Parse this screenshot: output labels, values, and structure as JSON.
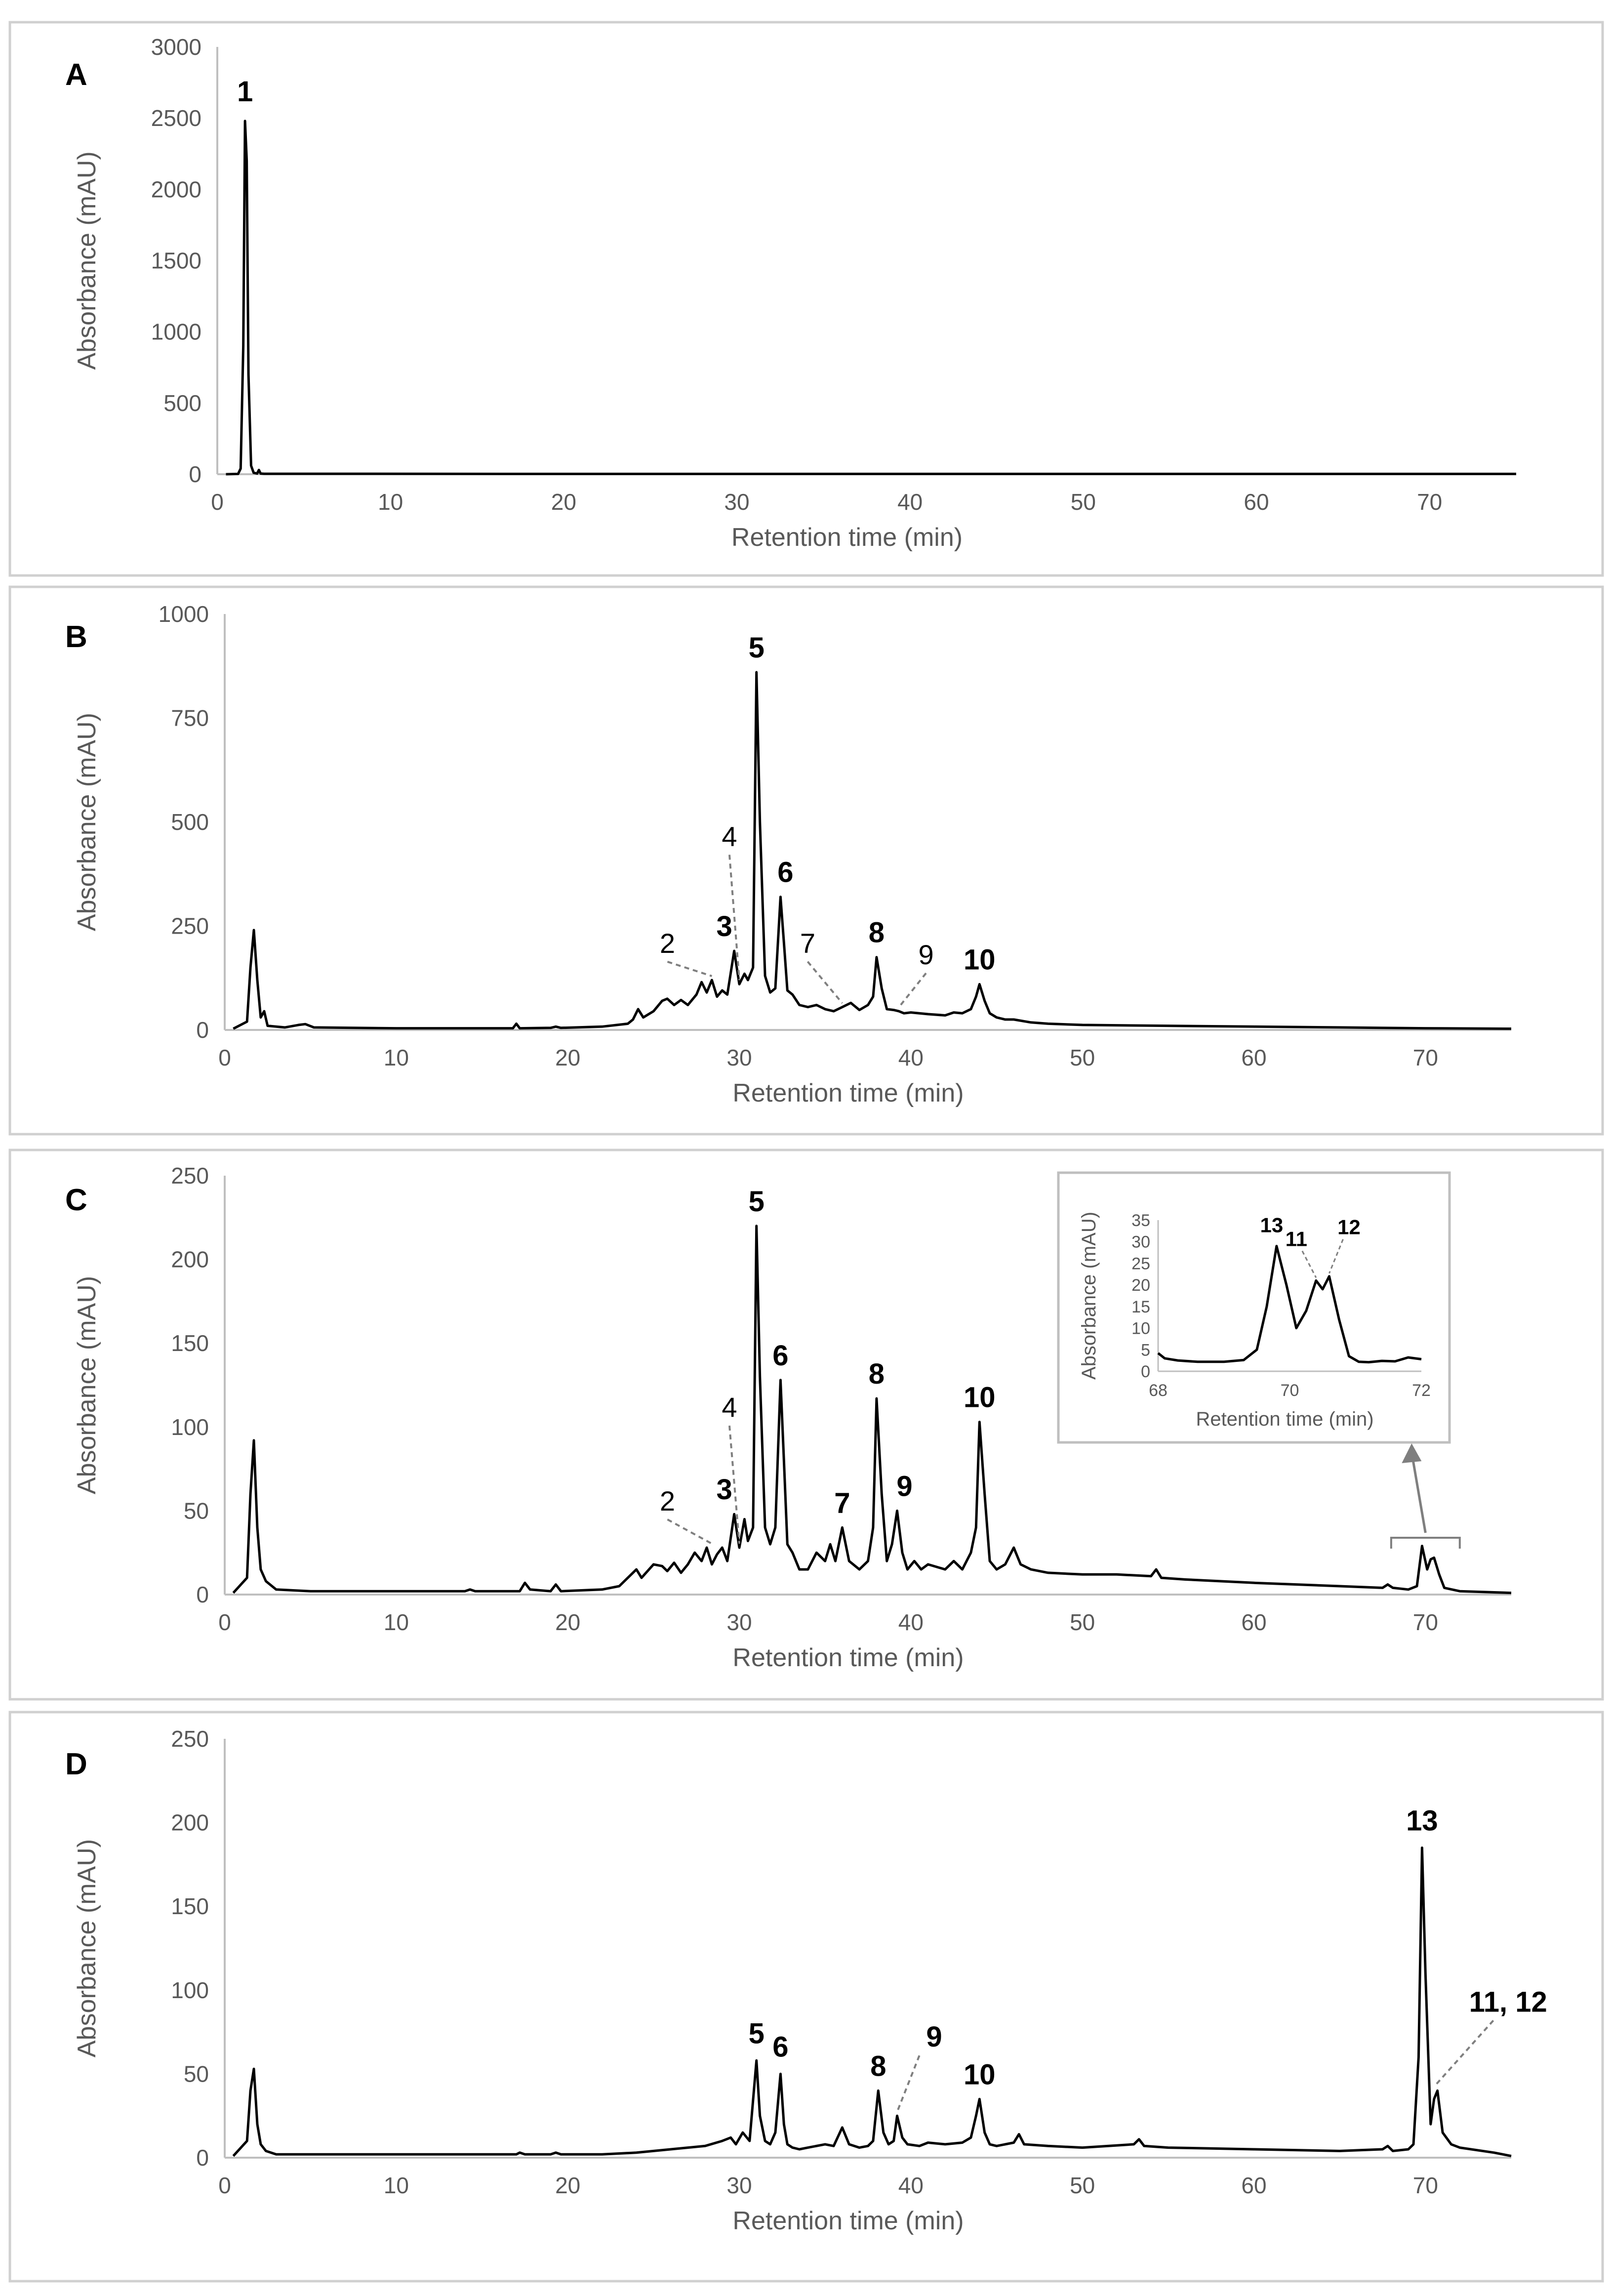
{
  "chart_data": [
    {
      "type": "line",
      "panel": "A",
      "xlabel": "Retention time (min)",
      "ylabel": "Absorbance (mAU)",
      "xlim": [
        0,
        75
      ],
      "ylim": [
        0,
        3000
      ],
      "xticks": [
        0,
        10,
        20,
        30,
        40,
        50,
        60,
        70
      ],
      "yticks": [
        0,
        500,
        1000,
        1500,
        2000,
        2500,
        3000
      ],
      "series": [
        {
          "name": "chromatogram A",
          "x": [
            0.5,
            1.2,
            1.35,
            1.5,
            1.6,
            1.7,
            1.8,
            1.95,
            2.1,
            2.3,
            2.4,
            2.5,
            2.7,
            5,
            20,
            40,
            60,
            75
          ],
          "y": [
            0,
            2,
            40,
            900,
            2480,
            2200,
            700,
            60,
            10,
            5,
            30,
            5,
            3,
            3,
            2,
            2,
            2,
            2
          ]
        }
      ],
      "annotations": [
        {
          "label": "1",
          "x": 1.6,
          "y": 2480,
          "bold": true
        }
      ]
    },
    {
      "type": "line",
      "panel": "B",
      "xlabel": "Retention time (min)",
      "ylabel": "Absorbance (mAU)",
      "xlim": [
        0,
        75
      ],
      "ylim": [
        0,
        1000
      ],
      "xticks": [
        0,
        10,
        20,
        30,
        40,
        50,
        60,
        70
      ],
      "yticks": [
        0,
        250,
        500,
        750,
        1000
      ],
      "series": [
        {
          "name": "chromatogram B",
          "x": [
            0.5,
            1.3,
            1.5,
            1.7,
            1.9,
            2.1,
            2.3,
            2.5,
            3.5,
            4.3,
            4.7,
            5.2,
            10,
            16.8,
            17,
            17.2,
            19,
            19.3,
            19.6,
            22,
            23.5,
            23.8,
            24.1,
            24.4,
            25,
            25.5,
            25.8,
            26.2,
            26.6,
            27,
            27.5,
            27.8,
            28.1,
            28.4,
            28.7,
            29,
            29.3,
            29.7,
            30.0,
            30.3,
            30.5,
            30.8,
            31.0,
            31.2,
            31.5,
            31.8,
            32.1,
            32.4,
            32.6,
            32.8,
            33.1,
            33.5,
            34,
            34.5,
            35,
            35.5,
            36,
            36.5,
            37,
            37.5,
            37.8,
            38.0,
            38.3,
            38.6,
            39,
            39.3,
            39.6,
            40,
            41,
            42,
            42.5,
            43,
            43.5,
            43.8,
            44.0,
            44.3,
            44.6,
            45,
            45.5,
            46,
            47,
            48,
            50,
            55,
            60,
            65,
            70,
            75
          ],
          "y": [
            3,
            20,
            150,
            240,
            120,
            30,
            45,
            10,
            6,
            12,
            14,
            6,
            4,
            4,
            15,
            4,
            5,
            8,
            5,
            8,
            15,
            25,
            50,
            30,
            45,
            70,
            75,
            60,
            72,
            60,
            85,
            115,
            90,
            120,
            80,
            95,
            85,
            190,
            110,
            135,
            120,
            150,
            860,
            500,
            130,
            90,
            100,
            320,
            210,
            95,
            85,
            60,
            55,
            60,
            50,
            45,
            55,
            65,
            48,
            60,
            80,
            175,
            100,
            50,
            48,
            45,
            40,
            42,
            38,
            35,
            42,
            40,
            50,
            80,
            110,
            70,
            40,
            30,
            25,
            25,
            18,
            15,
            12,
            10,
            8,
            6,
            4,
            3
          ]
        }
      ],
      "annotations": [
        {
          "label": "2",
          "x": 28.4,
          "y": 120,
          "bold": false
        },
        {
          "label": "3",
          "x": 29.7,
          "y": 190,
          "bold": true
        },
        {
          "label": "4",
          "x": 30.0,
          "y": 110,
          "bold": false
        },
        {
          "label": "5",
          "x": 31.0,
          "y": 860,
          "bold": true
        },
        {
          "label": "6",
          "x": 32.4,
          "y": 320,
          "bold": true
        },
        {
          "label": "7",
          "x": 36.0,
          "y": 55,
          "bold": false
        },
        {
          "label": "8",
          "x": 38.0,
          "y": 175,
          "bold": true
        },
        {
          "label": "9",
          "x": 39.3,
          "y": 45,
          "bold": false
        },
        {
          "label": "10",
          "x": 44.0,
          "y": 110,
          "bold": true
        }
      ]
    },
    {
      "type": "line",
      "panel": "C",
      "xlabel": "Retention time (min)",
      "ylabel": "Absorbance (mAU)",
      "xlim": [
        0,
        75
      ],
      "ylim": [
        0,
        250
      ],
      "xticks": [
        0,
        10,
        20,
        30,
        40,
        50,
        60,
        70
      ],
      "yticks": [
        0,
        50,
        100,
        150,
        200,
        250
      ],
      "series": [
        {
          "name": "chromatogram C",
          "x": [
            0.5,
            1.3,
            1.5,
            1.7,
            1.9,
            2.1,
            2.4,
            3,
            5,
            10,
            14,
            14.3,
            14.6,
            17.2,
            17.5,
            17.8,
            19,
            19.3,
            19.6,
            22,
            23,
            23.5,
            24.0,
            24.3,
            25,
            25.5,
            25.8,
            26.2,
            26.6,
            27,
            27.4,
            27.8,
            28.1,
            28.4,
            28.7,
            29,
            29.3,
            29.7,
            30.0,
            30.3,
            30.5,
            30.8,
            31.0,
            31.2,
            31.5,
            31.8,
            32.1,
            32.4,
            32.6,
            32.8,
            33.1,
            33.5,
            34,
            34.5,
            35,
            35.3,
            35.6,
            36.0,
            36.4,
            37,
            37.5,
            37.8,
            38.0,
            38.3,
            38.6,
            38.9,
            39.2,
            39.5,
            39.8,
            40.2,
            40.6,
            41,
            42,
            42.5,
            43,
            43.5,
            43.8,
            44.0,
            44.3,
            44.6,
            45,
            45.5,
            46.0,
            46.4,
            47,
            48,
            50,
            52,
            54,
            54.3,
            54.6,
            56,
            60,
            65,
            67.5,
            67.8,
            68.1,
            69,
            69.5,
            69.8,
            70.1,
            70.3,
            70.5,
            70.8,
            71.1,
            72,
            75
          ],
          "y": [
            1,
            10,
            60,
            92,
            40,
            15,
            8,
            3,
            2,
            2,
            2,
            3,
            2,
            2,
            7,
            3,
            2,
            6,
            2,
            3,
            5,
            10,
            15,
            10,
            18,
            17,
            14,
            19,
            13,
            18,
            25,
            20,
            28,
            18,
            24,
            28,
            20,
            48,
            28,
            45,
            32,
            40,
            220,
            130,
            40,
            30,
            40,
            128,
            80,
            30,
            25,
            15,
            15,
            25,
            20,
            30,
            20,
            40,
            20,
            15,
            20,
            40,
            117,
            60,
            20,
            30,
            50,
            25,
            15,
            20,
            15,
            18,
            15,
            20,
            15,
            25,
            40,
            103,
            60,
            20,
            15,
            18,
            28,
            18,
            15,
            13,
            12,
            12,
            11,
            15,
            10,
            9,
            7,
            5,
            4,
            6,
            4,
            3,
            5,
            29,
            15,
            21,
            22,
            12,
            4,
            2,
            1
          ]
        }
      ],
      "annotations": [
        {
          "label": "2",
          "x": 28.4,
          "y": 28,
          "bold": false
        },
        {
          "label": "3",
          "x": 29.7,
          "y": 48,
          "bold": true
        },
        {
          "label": "4",
          "x": 30.0,
          "y": 28,
          "bold": false
        },
        {
          "label": "5",
          "x": 31.0,
          "y": 220,
          "bold": true
        },
        {
          "label": "6",
          "x": 32.4,
          "y": 128,
          "bold": true
        },
        {
          "label": "7",
          "x": 36.0,
          "y": 40,
          "bold": true
        },
        {
          "label": "8",
          "x": 38.0,
          "y": 117,
          "bold": true
        },
        {
          "label": "9",
          "x": 39.2,
          "y": 50,
          "bold": true
        },
        {
          "label": "10",
          "x": 44.0,
          "y": 103,
          "bold": true
        }
      ],
      "bracket": {
        "x_start": 68,
        "x_end": 72
      },
      "inset": {
        "type": "line",
        "xlabel": "Retention time (min)",
        "ylabel": "Absorbance (mAU)",
        "xlim": [
          68,
          72
        ],
        "ylim": [
          0,
          35
        ],
        "xticks": [
          68,
          70,
          72
        ],
        "yticks": [
          0,
          5,
          10,
          15,
          20,
          25,
          30,
          35
        ],
        "series": [
          {
            "name": "inset C",
            "x": [
              68.0,
              68.1,
              68.3,
              68.6,
              69.0,
              69.3,
              69.5,
              69.65,
              69.8,
              69.95,
              70.1,
              70.25,
              70.4,
              70.5,
              70.6,
              70.75,
              70.9,
              71.05,
              71.2,
              71.4,
              71.6,
              71.8,
              72.0
            ],
            "y": [
              4.2,
              3.0,
              2.5,
              2.2,
              2.2,
              2.6,
              5.0,
              15.0,
              29.0,
              20.0,
              10.0,
              14.0,
              21.0,
              19.0,
              22.0,
              12.0,
              3.5,
              2.2,
              2.1,
              2.4,
              2.3,
              3.2,
              2.8
            ]
          }
        ],
        "annotations": [
          {
            "label": "13",
            "x": 69.8,
            "y": 29.0
          },
          {
            "label": "11",
            "x": 70.4,
            "y": 21.0
          },
          {
            "label": "12",
            "x": 70.6,
            "y": 22.0
          }
        ]
      }
    },
    {
      "type": "line",
      "panel": "D",
      "xlabel": "Retention time (min)",
      "ylabel": "Absorbance (mAU)",
      "xlim": [
        0,
        75
      ],
      "ylim": [
        0,
        250
      ],
      "xticks": [
        0,
        10,
        20,
        30,
        40,
        50,
        60,
        70
      ],
      "yticks": [
        0,
        50,
        100,
        150,
        200,
        250
      ],
      "series": [
        {
          "name": "chromatogram D",
          "x": [
            0.5,
            1.3,
            1.5,
            1.7,
            1.9,
            2.1,
            2.4,
            3,
            5,
            10,
            17,
            17.2,
            17.5,
            19,
            19.3,
            19.6,
            22,
            24,
            25,
            26,
            27,
            28,
            29,
            29.5,
            29.8,
            30.2,
            30.6,
            31.0,
            31.2,
            31.5,
            31.8,
            32.1,
            32.4,
            32.6,
            32.8,
            33.1,
            33.5,
            34,
            35,
            35.5,
            36.0,
            36.4,
            37,
            37.5,
            37.8,
            38.1,
            38.4,
            38.7,
            39.0,
            39.2,
            39.5,
            39.8,
            40.5,
            41,
            42,
            43,
            43.5,
            43.8,
            44.0,
            44.3,
            44.6,
            45,
            46,
            46.3,
            46.6,
            48,
            50,
            53,
            53.3,
            53.6,
            55,
            60,
            65,
            67.5,
            67.8,
            68.1,
            69,
            69.3,
            69.6,
            69.8,
            70.0,
            70.3,
            70.5,
            70.7,
            71.0,
            71.5,
            72,
            74,
            75
          ],
          "y": [
            1,
            10,
            40,
            53,
            20,
            8,
            4,
            2,
            2,
            2,
            2,
            3,
            2,
            2,
            3,
            2,
            2,
            3,
            4,
            5,
            6,
            7,
            10,
            12,
            8,
            15,
            10,
            58,
            25,
            10,
            8,
            15,
            50,
            20,
            8,
            6,
            5,
            6,
            8,
            7,
            18,
            8,
            6,
            7,
            10,
            40,
            15,
            8,
            10,
            25,
            12,
            8,
            7,
            9,
            8,
            9,
            12,
            25,
            35,
            15,
            8,
            7,
            9,
            14,
            8,
            7,
            6,
            8,
            11,
            7,
            6,
            5,
            4,
            5,
            7,
            4,
            5,
            8,
            60,
            185,
            110,
            20,
            35,
            40,
            15,
            8,
            6,
            3,
            1
          ]
        }
      ],
      "annotations": [
        {
          "label": "5",
          "x": 31.0,
          "y": 58,
          "bold": true
        },
        {
          "label": "6",
          "x": 32.4,
          "y": 50,
          "bold": true
        },
        {
          "label": "8",
          "x": 38.1,
          "y": 40,
          "bold": true
        },
        {
          "label": "9",
          "x": 39.2,
          "y": 25,
          "bold": true
        },
        {
          "label": "10",
          "x": 44.0,
          "y": 35,
          "bold": true
        },
        {
          "label": "13",
          "x": 69.8,
          "y": 185,
          "bold": true
        },
        {
          "label": "11, 12",
          "x": 70.5,
          "y": 40,
          "bold": true
        }
      ]
    }
  ]
}
